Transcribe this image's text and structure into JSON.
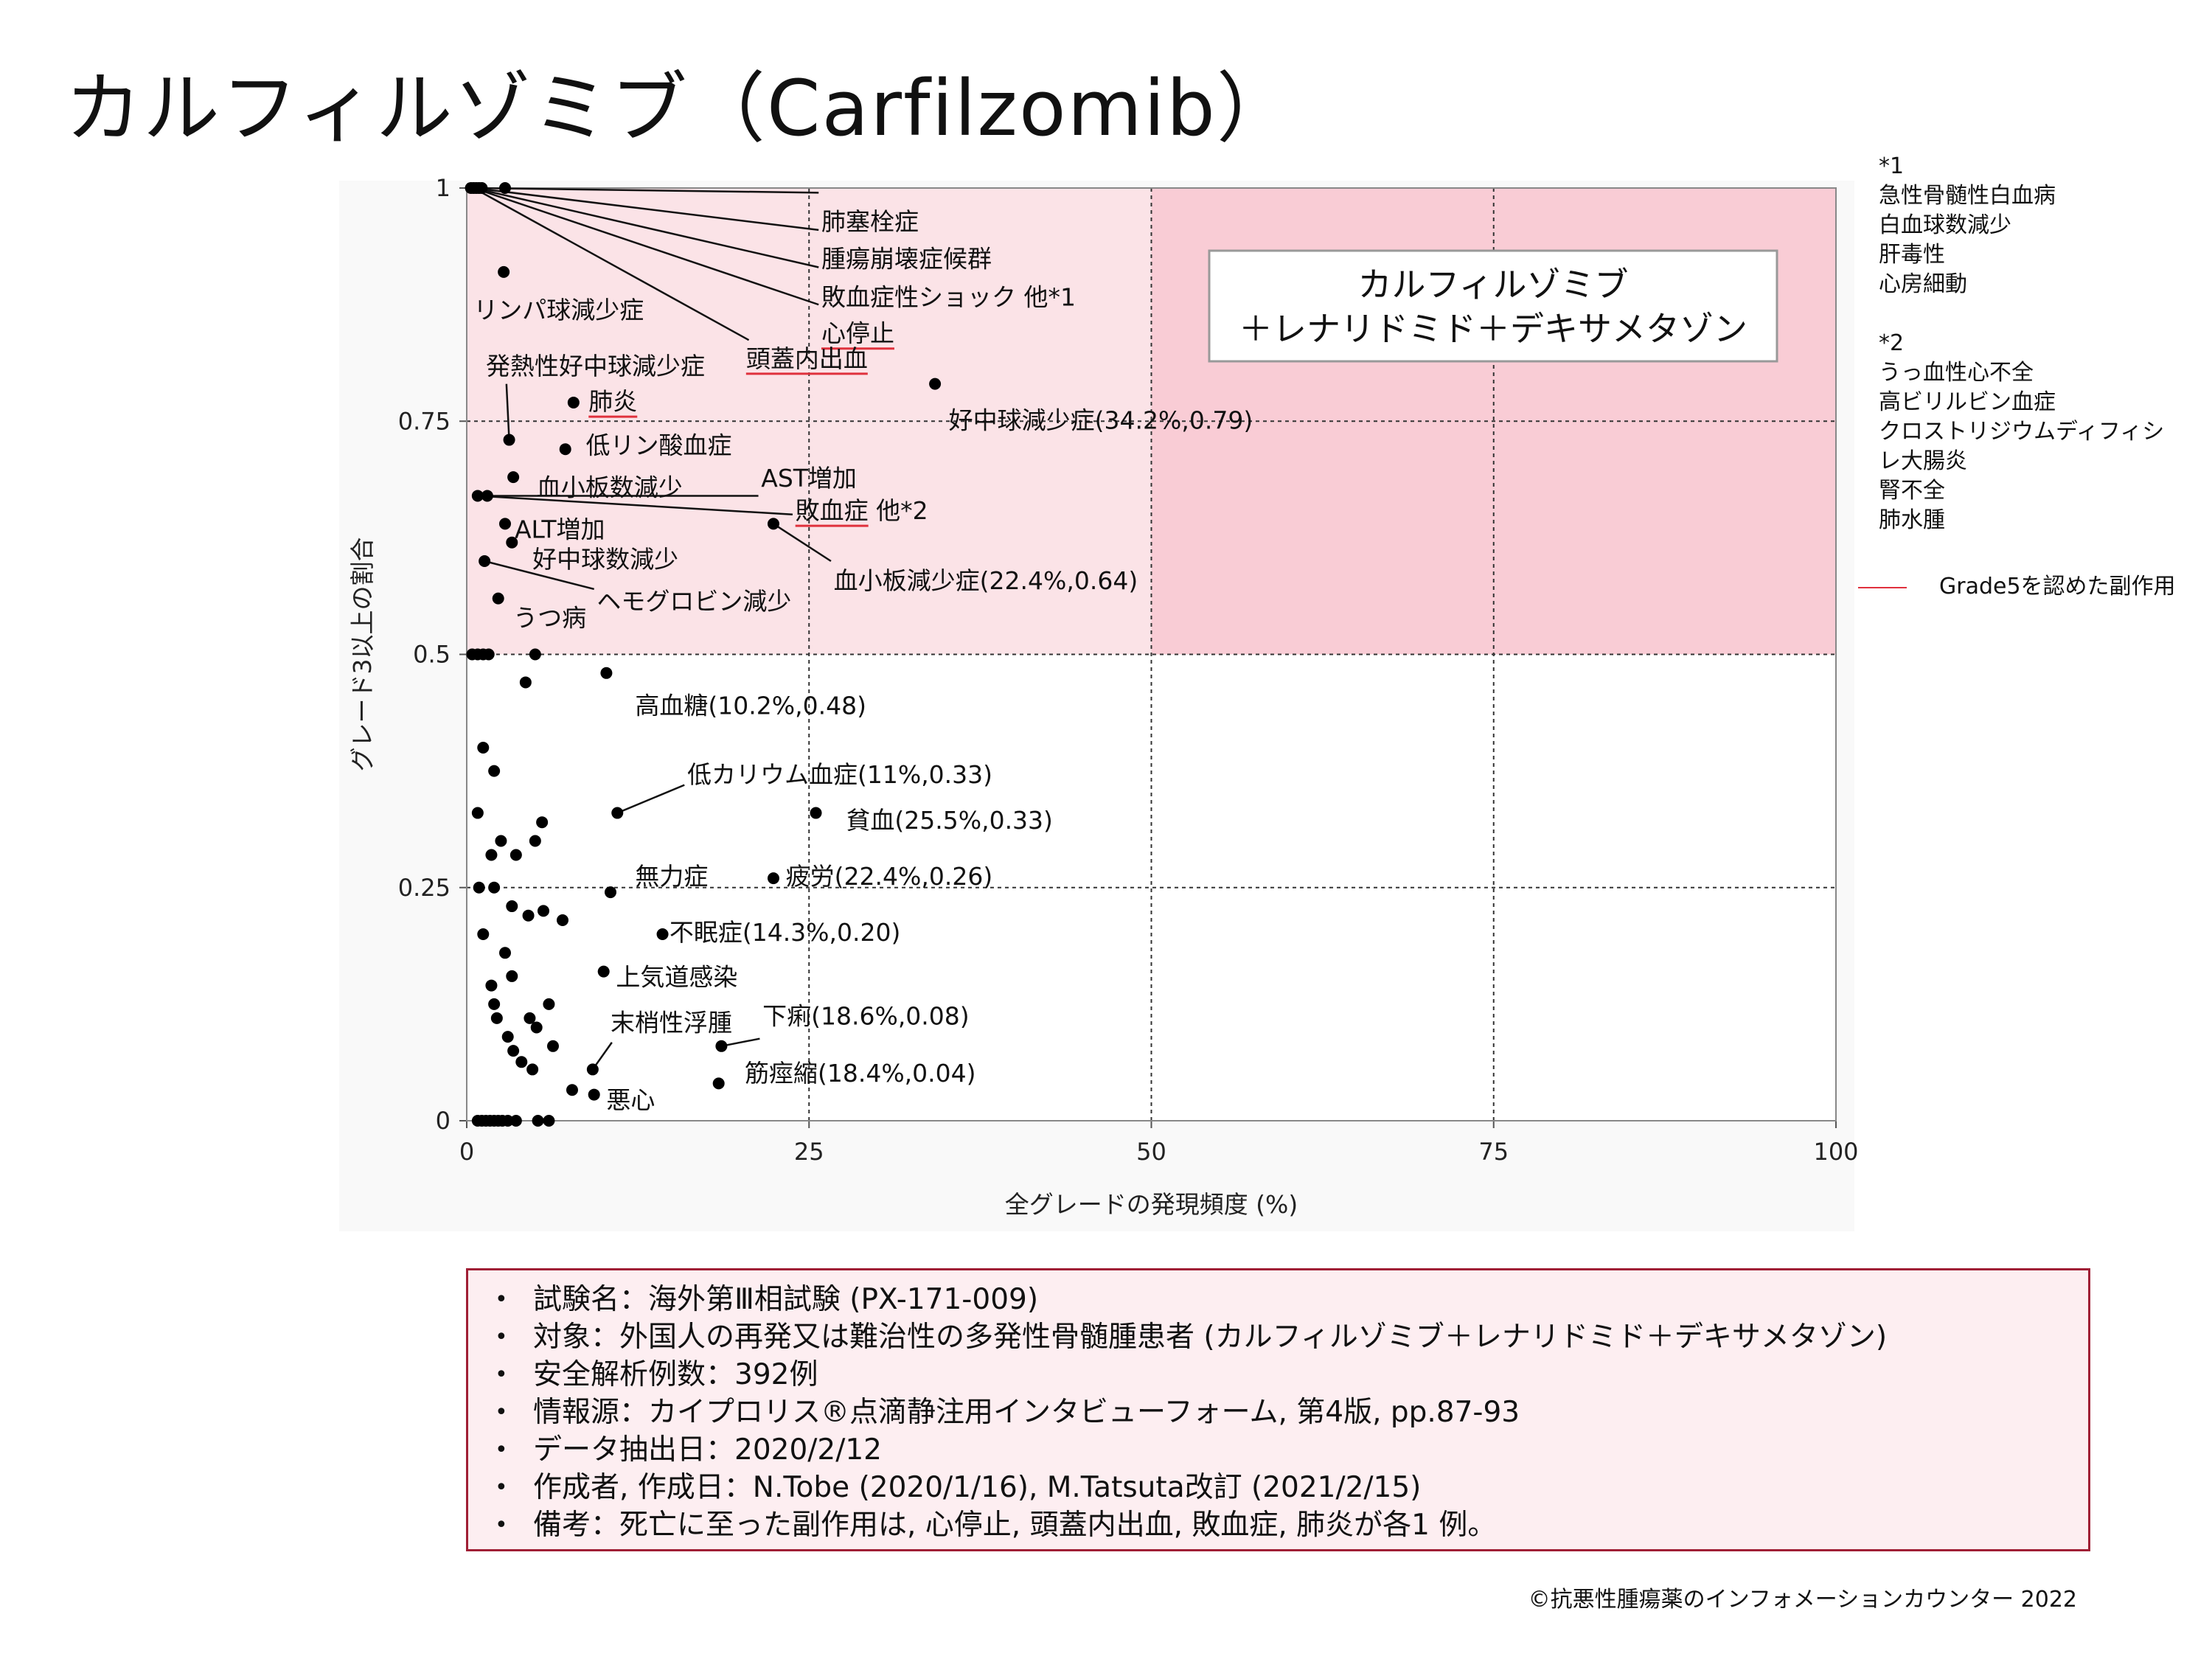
{
  "title": "カルフィルゾミブ（Carfilzomib）",
  "notes": {
    "note1_header": "*1",
    "note1_items": [
      "急性骨髄性白血病",
      "白血球数減少",
      "肝毒性",
      "心房細動"
    ],
    "note2_header": "*2",
    "note2_items": [
      "うっ血性心不全",
      "高ビリルビン血症",
      "クロストリジウムディフィシ",
      "レ大腸炎",
      "腎不全",
      "肺水腫"
    ]
  },
  "legend": {
    "label": "Grade5を認めた副作用",
    "color": "#e0313d"
  },
  "chart_data": {
    "type": "scatter",
    "xlabel": "全グレードの発現頻度 (%)",
    "ylabel": "グレード3以上の割合",
    "xlim": [
      0,
      100
    ],
    "ylim": [
      0,
      1
    ],
    "xticks": [
      0,
      25,
      50,
      75,
      100
    ],
    "yticks": [
      0,
      0.25,
      0.5,
      0.75,
      1
    ],
    "x_tick_labels": [
      "0",
      "25",
      "50",
      "75",
      "100"
    ],
    "y_tick_labels": [
      "0",
      "0.25",
      "0.5",
      "0.75",
      "1"
    ],
    "grid": "dashed at x=25,50,75 and y=0.25,0.5,0.75",
    "colors": {
      "plot_bg": "#f9f9f9",
      "upper_band": "#fbe3e7",
      "upper_right": "#f9ccd5",
      "dot": "#000000",
      "grade5_underline": "#e0313d"
    },
    "inset_box": {
      "line1": "カルフィルゾミブ",
      "line2": "＋レナリドミド＋デキサメタゾン"
    },
    "points": [
      [
        0.3,
        1
      ],
      [
        0.5,
        1
      ],
      [
        0.7,
        1
      ],
      [
        0.9,
        1
      ],
      [
        1.1,
        1
      ],
      [
        2.8,
        1
      ],
      [
        2.7,
        0.91
      ],
      [
        3.1,
        0.73
      ],
      [
        3.4,
        0.69
      ],
      [
        7.8,
        0.77
      ],
      [
        7.2,
        0.72
      ],
      [
        34.2,
        0.79
      ],
      [
        0.8,
        0.67
      ],
      [
        1.5,
        0.67
      ],
      [
        22.4,
        0.64
      ],
      [
        2.8,
        0.64
      ],
      [
        3.3,
        0.62
      ],
      [
        1.3,
        0.6
      ],
      [
        2.3,
        0.56
      ],
      [
        0.4,
        0.5
      ],
      [
        0.8,
        0.5
      ],
      [
        1.2,
        0.5
      ],
      [
        1.6,
        0.5
      ],
      [
        5.0,
        0.5
      ],
      [
        10.2,
        0.48
      ],
      [
        4.3,
        0.47
      ],
      [
        1.2,
        0.4
      ],
      [
        2.0,
        0.375
      ],
      [
        0.8,
        0.33
      ],
      [
        11.0,
        0.33
      ],
      [
        25.5,
        0.33
      ],
      [
        5.5,
        0.32
      ],
      [
        2.5,
        0.3
      ],
      [
        5.0,
        0.3
      ],
      [
        1.8,
        0.285
      ],
      [
        3.6,
        0.285
      ],
      [
        22.4,
        0.26
      ],
      [
        0.9,
        0.25
      ],
      [
        2.0,
        0.25
      ],
      [
        10.5,
        0.245
      ],
      [
        3.3,
        0.23
      ],
      [
        4.5,
        0.22
      ],
      [
        5.6,
        0.225
      ],
      [
        7.0,
        0.215
      ],
      [
        1.2,
        0.2
      ],
      [
        14.3,
        0.2
      ],
      [
        2.8,
        0.18
      ],
      [
        10.0,
        0.16
      ],
      [
        3.3,
        0.155
      ],
      [
        1.8,
        0.145
      ],
      [
        2.0,
        0.125
      ],
      [
        6.0,
        0.125
      ],
      [
        2.2,
        0.11
      ],
      [
        4.6,
        0.11
      ],
      [
        3.0,
        0.09
      ],
      [
        5.1,
        0.1
      ],
      [
        3.4,
        0.075
      ],
      [
        18.6,
        0.08
      ],
      [
        4.0,
        0.063
      ],
      [
        4.8,
        0.055
      ],
      [
        6.3,
        0.08
      ],
      [
        9.2,
        0.055
      ],
      [
        7.7,
        0.033
      ],
      [
        18.4,
        0.04
      ],
      [
        9.3,
        0.028
      ],
      [
        0.8,
        0
      ],
      [
        1.1,
        0
      ],
      [
        1.4,
        0
      ],
      [
        1.7,
        0
      ],
      [
        2.0,
        0
      ],
      [
        2.3,
        0
      ],
      [
        2.6,
        0
      ],
      [
        3.0,
        0
      ],
      [
        3.6,
        0
      ],
      [
        5.2,
        0
      ],
      [
        6.0,
        0
      ]
    ],
    "labels": [
      {
        "text": "肺塞栓症",
        "x": 25.9,
        "y": 0.955,
        "anchor": "start",
        "line": [
          [
            0.5,
            1
          ],
          [
            25.7,
            0.995
          ]
        ],
        "grade5": false
      },
      {
        "text": "腫瘍崩壊症候群",
        "x": 25.9,
        "y": 0.915,
        "anchor": "start",
        "line": [
          [
            0.5,
            1
          ],
          [
            25.7,
            0.955
          ]
        ],
        "grade5": false
      },
      {
        "text": "敗血症性ショック 他*1",
        "x": 25.9,
        "y": 0.874,
        "anchor": "start",
        "line": [
          [
            0.5,
            1
          ],
          [
            25.7,
            0.915
          ]
        ],
        "grade5": false
      },
      {
        "text": "心停止",
        "x": 25.9,
        "y": 0.835,
        "anchor": "start",
        "line": [
          [
            0.5,
            1
          ],
          [
            25.7,
            0.875
          ]
        ],
        "grade5": true
      },
      {
        "text": "頭蓋内出血",
        "x": 20.4,
        "y": 0.808,
        "anchor": "start",
        "line": [
          [
            0.5,
            1
          ],
          [
            20.6,
            0.837
          ]
        ],
        "grade5": true
      },
      {
        "text": "リンパ球減少症",
        "x": 0.5,
        "y": 0.86,
        "anchor": "start",
        "line": null,
        "grade5": false
      },
      {
        "text": "発熱性好中球減少症",
        "x": 1.4,
        "y": 0.8,
        "anchor": "start",
        "line": [
          [
            2.9,
            0.79
          ],
          [
            3.1,
            0.73
          ]
        ],
        "grade5": false
      },
      {
        "text": "肺炎",
        "x": 8.9,
        "y": 0.762,
        "anchor": "start",
        "line": null,
        "grade5": true
      },
      {
        "text": "低リン酸血症",
        "x": 8.7,
        "y": 0.715,
        "anchor": "start",
        "line": null,
        "grade5": false
      },
      {
        "text": "血小板数減少",
        "x": 5.1,
        "y": 0.67,
        "anchor": "start",
        "line": null,
        "grade5": false
      },
      {
        "text": "AST増加",
        "x": 21.5,
        "y": 0.68,
        "anchor": "start",
        "line": [
          [
            0.8,
            0.67
          ],
          [
            21.3,
            0.67
          ]
        ],
        "grade5": false
      },
      {
        "text": "敗血症 他*2",
        "x": 24.0,
        "y": 0.645,
        "anchor": "start",
        "line": [
          [
            0.8,
            0.67
          ],
          [
            23.8,
            0.65
          ]
        ],
        "grade5": true
      },
      {
        "text": "ALT増加",
        "x": 3.5,
        "y": 0.625,
        "anchor": "start",
        "line": null,
        "grade5": false
      },
      {
        "text": "好中球数減少",
        "x": 4.8,
        "y": 0.593,
        "anchor": "start",
        "line": null,
        "grade5": false
      },
      {
        "text": "ヘモグロビン減少",
        "x": 9.5,
        "y": 0.548,
        "anchor": "start",
        "line": [
          [
            1.3,
            0.6
          ],
          [
            9.3,
            0.57
          ]
        ],
        "grade5": false
      },
      {
        "text": "うつ病",
        "x": 3.4,
        "y": 0.53,
        "anchor": "start",
        "line": null,
        "grade5": false
      },
      {
        "text": "好中球減少症(34.2%,0.79)",
        "x": 35.2,
        "y": 0.742,
        "anchor": "start",
        "line": null,
        "grade5": false
      },
      {
        "text": "血小板減少症(22.4%,0.64)",
        "x": 26.8,
        "y": 0.57,
        "anchor": "start",
        "line": [
          [
            22.4,
            0.64
          ],
          [
            26.6,
            0.6
          ]
        ],
        "grade5": false
      },
      {
        "text": "高血糖(10.2%,0.48)",
        "x": 12.3,
        "y": 0.436,
        "anchor": "start",
        "line": null,
        "grade5": false
      },
      {
        "text": "低カリウム血症(11%,0.33)",
        "x": 16.1,
        "y": 0.362,
        "anchor": "start",
        "line": [
          [
            11.0,
            0.33
          ],
          [
            15.9,
            0.36
          ]
        ],
        "grade5": false
      },
      {
        "text": "貧血(25.5%,0.33)",
        "x": 27.7,
        "y": 0.313,
        "anchor": "start",
        "line": null,
        "grade5": false
      },
      {
        "text": "無力症",
        "x": 12.3,
        "y": 0.253,
        "anchor": "start",
        "line": null,
        "grade5": false
      },
      {
        "text": "疲労(22.4%,0.26)",
        "x": 23.3,
        "y": 0.253,
        "anchor": "start",
        "line": null,
        "grade5": false
      },
      {
        "text": "不眠症(14.3%,0.20)",
        "x": 14.8,
        "y": 0.193,
        "anchor": "start",
        "line": null,
        "grade5": false
      },
      {
        "text": "上気道感染",
        "x": 10.9,
        "y": 0.145,
        "anchor": "start",
        "line": null,
        "grade5": false
      },
      {
        "text": "末梢性浮腫",
        "x": 10.5,
        "y": 0.096,
        "anchor": "start",
        "line": [
          [
            9.2,
            0.055
          ],
          [
            10.6,
            0.084
          ]
        ],
        "grade5": false
      },
      {
        "text": "下痢(18.6%,0.08)",
        "x": 21.6,
        "y": 0.103,
        "anchor": "start",
        "line": [
          [
            18.6,
            0.08
          ],
          [
            21.4,
            0.088
          ]
        ],
        "grade5": false
      },
      {
        "text": "筋痙縮(18.4%,0.04)",
        "x": 20.3,
        "y": 0.042,
        "anchor": "start",
        "line": null,
        "grade5": false
      },
      {
        "text": "悪心",
        "x": 10.2,
        "y": 0.013,
        "anchor": "start",
        "line": null,
        "grade5": false
      }
    ]
  },
  "info": [
    "試験名：海外第Ⅲ相試験 (PX-171-009)",
    "対象：外国人の再発又は難治性の多発性骨髄腫患者 (カルフィルゾミブ＋レナリドミド＋デキサメタゾン)",
    "安全解析例数：392例",
    "情報源：カイプロリス®点滴静注用インタビューフォーム, 第4版, pp.87-93",
    "データ抽出日：2020/2/12",
    "作成者, 作成日：N.Tobe (2020/1/16), M.Tatsuta改訂 (2021/2/15)",
    "備考：死亡に至った副作用は,  心停止, 頭蓋内出血, 敗血症, 肺炎が各1 例。"
  ],
  "copyright": "©抗悪性腫瘍薬のインフォメーションカウンター  2022"
}
